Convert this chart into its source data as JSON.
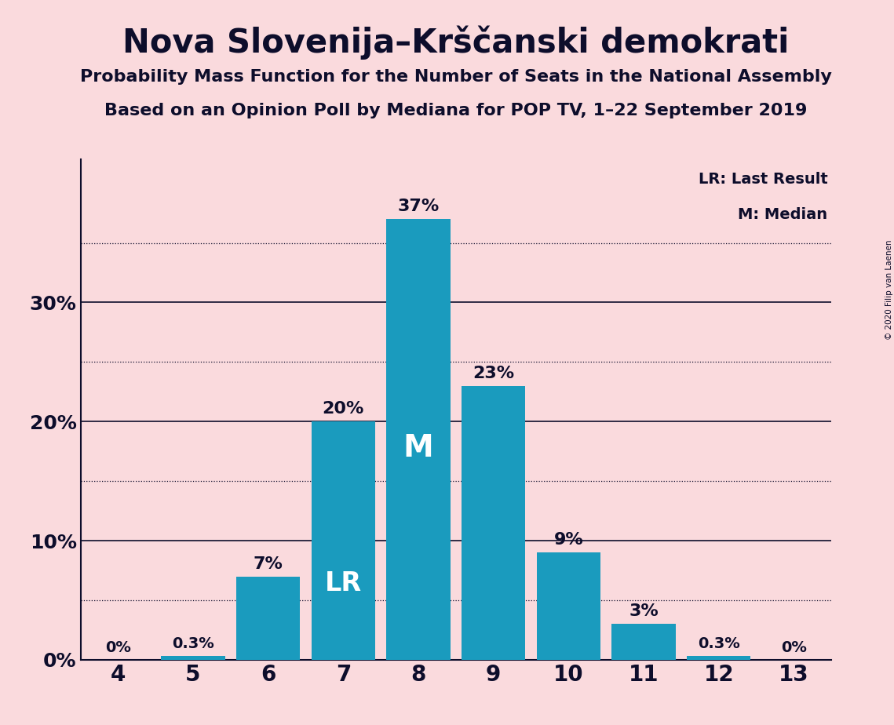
{
  "title": "Nova Slovenija–Krščanski demokrati",
  "subtitle1": "Probability Mass Function for the Number of Seats in the National Assembly",
  "subtitle2": "Based on an Opinion Poll by Mediana for POP TV, 1–22 September 2019",
  "copyright": "© 2020 Filip van Laenen",
  "seats": [
    4,
    5,
    6,
    7,
    8,
    9,
    10,
    11,
    12,
    13
  ],
  "probabilities": [
    0.0,
    0.3,
    7.0,
    20.0,
    37.0,
    23.0,
    9.0,
    3.0,
    0.3,
    0.0
  ],
  "labels": [
    "0%",
    "0.3%",
    "7%",
    "20%",
    "37%",
    "23%",
    "9%",
    "3%",
    "0.3%",
    "0%"
  ],
  "bar_color": "#1a9bbe",
  "background_color": "#fadadd",
  "text_color": "#0d0d2b",
  "lr_seat": 7,
  "median_seat": 8,
  "lr_label": "LR",
  "median_label": "M",
  "yticks": [
    0,
    10,
    20,
    30
  ],
  "ytick_labels": [
    "0%",
    "10%",
    "20%",
    "30%"
  ],
  "dotted_lines": [
    5,
    15,
    25,
    35
  ],
  "legend_text1": "LR: Last Result",
  "legend_text2": "M: Median",
  "title_fontsize": 30,
  "subtitle_fontsize": 16,
  "label_fontsize": 15,
  "ytick_fontsize": 18,
  "xtick_fontsize": 20,
  "ylim_max": 42,
  "bar_width": 0.85,
  "xlim_min": 3.5,
  "xlim_max": 13.5
}
